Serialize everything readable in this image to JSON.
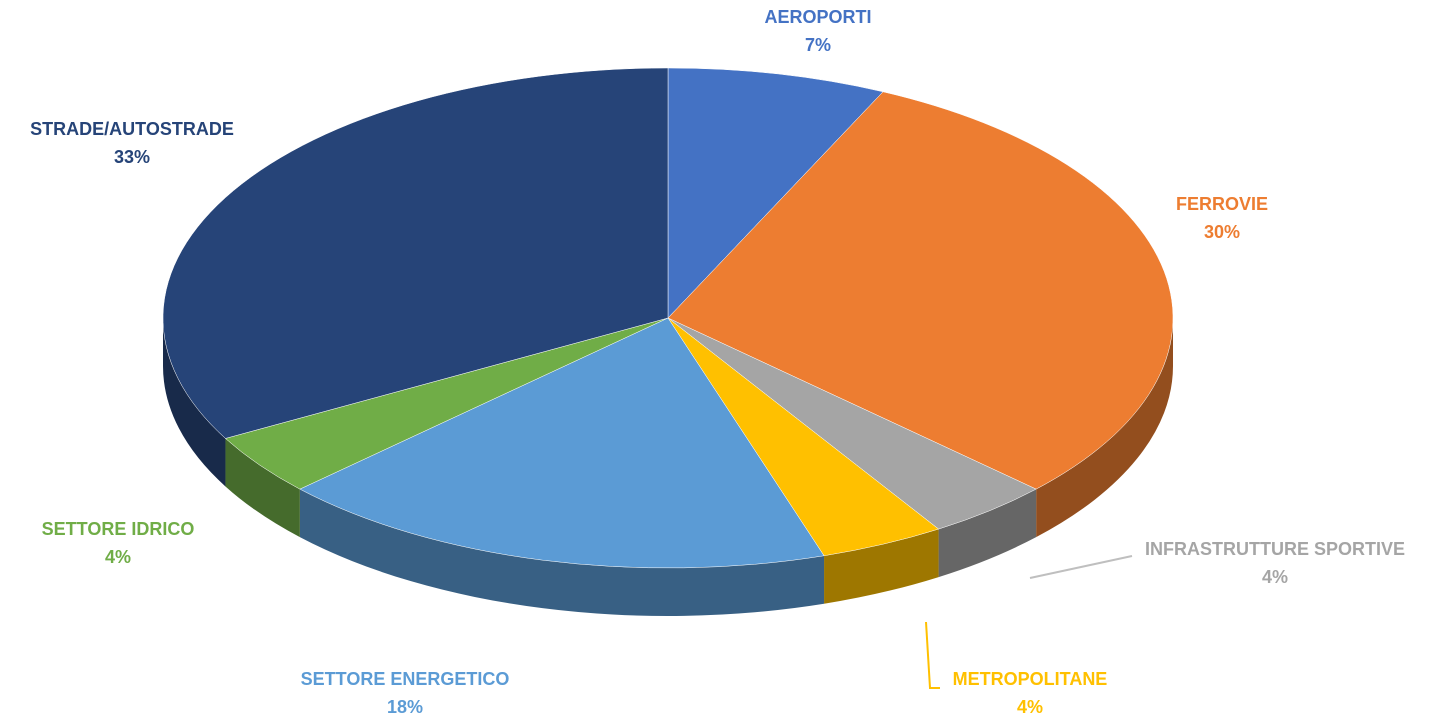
{
  "chart_data": {
    "type": "pie",
    "categories": [
      "AEROPORTI",
      "FERROVIE",
      "INFRASTRUTTURE SPORTIVE",
      "METROPOLITANE",
      "SETTORE ENERGETICO",
      "SETTORE IDRICO",
      "STRADE/AUTOSTRADE"
    ],
    "values": [
      7,
      30,
      4,
      4,
      18,
      4,
      33
    ],
    "value_labels": [
      "7%",
      "30%",
      "4%",
      "4%",
      "18%",
      "4%",
      "33%"
    ],
    "colors": [
      "#4472c4",
      "#ed7d31",
      "#a5a5a5",
      "#ffc000",
      "#5b9bd5",
      "#70ad47",
      "#264478"
    ]
  }
}
